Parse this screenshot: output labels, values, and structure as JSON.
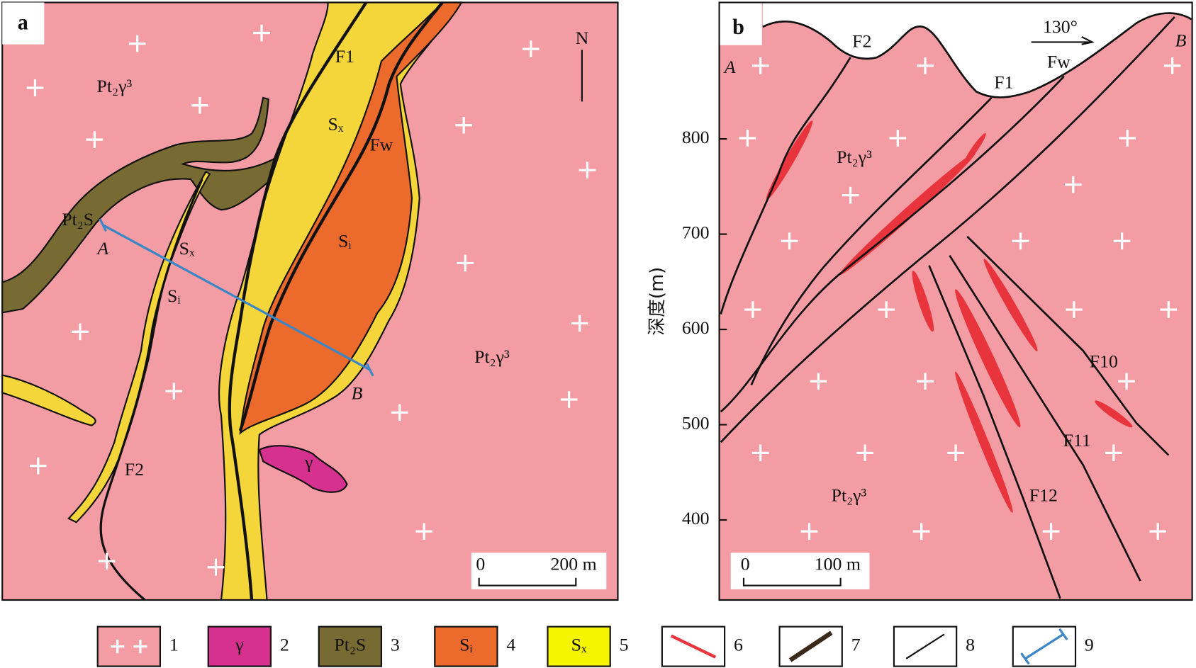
{
  "panel_a": {
    "label": "a",
    "north": "N",
    "rock_label_1": "Pt₂γ³",
    "rock_label_2": "Pt₂γ³",
    "strata_label": "Pt₂S",
    "point_a": "A",
    "point_b": "B",
    "sx_1": "Sₓ",
    "sx_2": "Sₓ",
    "si_1": "Sᵢ",
    "si_2": "Sᵢ",
    "fault_f1": "F1",
    "fault_fw": "Fw",
    "fault_f2": "F2",
    "intrusion": "γ",
    "scale_zero": "0",
    "scale_length": "200 m"
  },
  "panel_b": {
    "label": "b",
    "point_a": "A",
    "point_b": "B",
    "direction": "130°",
    "fault_f2": "F2",
    "fault_f1": "F1",
    "fault_fw": "Fw",
    "fault_f10": "F10",
    "fault_f11": "F11",
    "fault_f12": "F12",
    "rock_label_1": "Pt₂γ³",
    "rock_label_2": "Pt₂γ³",
    "scale_zero": "0",
    "scale_length": "100 m",
    "depth_axis": {
      "label": "深度(m)",
      "ticks": [
        800,
        700,
        600,
        500,
        400
      ]
    }
  },
  "legend": [
    {
      "number": "1"
    },
    {
      "symbol": "γ",
      "number": "2"
    },
    {
      "symbol": "Pt₂S",
      "number": "3"
    },
    {
      "symbol": "Sᵢ",
      "number": "4"
    },
    {
      "symbol": "Sₓ",
      "number": "5"
    },
    {
      "number": "6"
    },
    {
      "number": "7"
    },
    {
      "number": "8"
    },
    {
      "number": "9"
    }
  ]
}
